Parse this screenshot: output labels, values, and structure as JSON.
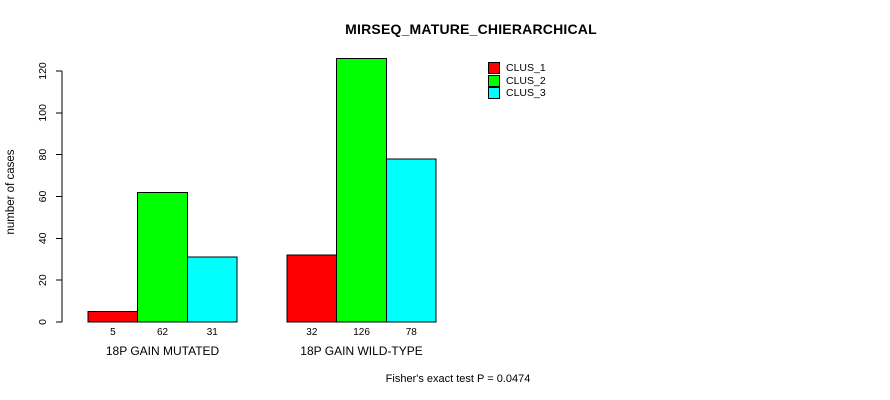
{
  "chart_data": {
    "type": "bar",
    "title": "MIRSEQ_MATURE_CHIERARCHICAL",
    "ylabel": "number of cases",
    "xlabel": "",
    "categories": [
      "18P GAIN MUTATED",
      "18P GAIN WILD-TYPE"
    ],
    "series": [
      {
        "name": "CLUS_1",
        "color": "#ff0000",
        "values": [
          5,
          32
        ]
      },
      {
        "name": "CLUS_2",
        "color": "#00ff00",
        "values": [
          62,
          126
        ]
      },
      {
        "name": "CLUS_3",
        "color": "#00ffff",
        "values": [
          31,
          78
        ]
      }
    ],
    "ylim": [
      0,
      120
    ],
    "yticks": [
      0,
      20,
      40,
      60,
      80,
      100,
      120
    ],
    "grid": false,
    "legend_position": "top-right",
    "bar_value_labels": true,
    "annotation": "Fisher's exact test P = 0.0474"
  },
  "colors": {
    "background": "#ffffff",
    "axis": "#000000",
    "text": "#000000",
    "bar_border": "#000000"
  }
}
